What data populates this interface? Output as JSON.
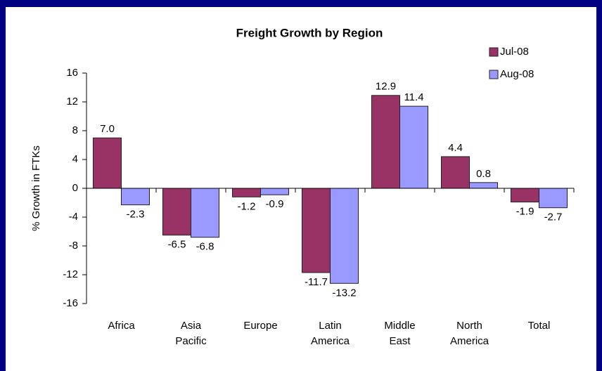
{
  "chart_data": {
    "type": "bar",
    "title": "Freight Growth by Region",
    "y_label": "% Growth in FTKs",
    "categories": [
      "Africa",
      "Asia Pacific",
      "Europe",
      "Latin America",
      "Middle East",
      "North America",
      "Total"
    ],
    "series": [
      {
        "name": "Jul-08",
        "color": "#993366",
        "values": [
          7,
          -6.5,
          -1.2,
          -11.7,
          12.9,
          4.4,
          -1.9
        ],
        "value_labels": [
          "7.0",
          "-6.5",
          "-1.2",
          "-11.7",
          "12.9",
          "4.4",
          "-1.9"
        ]
      },
      {
        "name": "Aug-08",
        "color": "#9999ff",
        "values": [
          -2.3,
          -6.8,
          -0.9,
          -13.2,
          11.4,
          0.8,
          -2.7
        ],
        "value_labels": [
          "-2.3",
          "-6.8",
          "-0.9",
          "-13.2",
          "11.4",
          "0.8",
          "-2.7"
        ]
      }
    ],
    "ylim": [
      -16,
      16
    ],
    "yticks": [
      -16,
      -12,
      -8,
      -4,
      0,
      4,
      8,
      12,
      16
    ],
    "legend": "top-right"
  }
}
